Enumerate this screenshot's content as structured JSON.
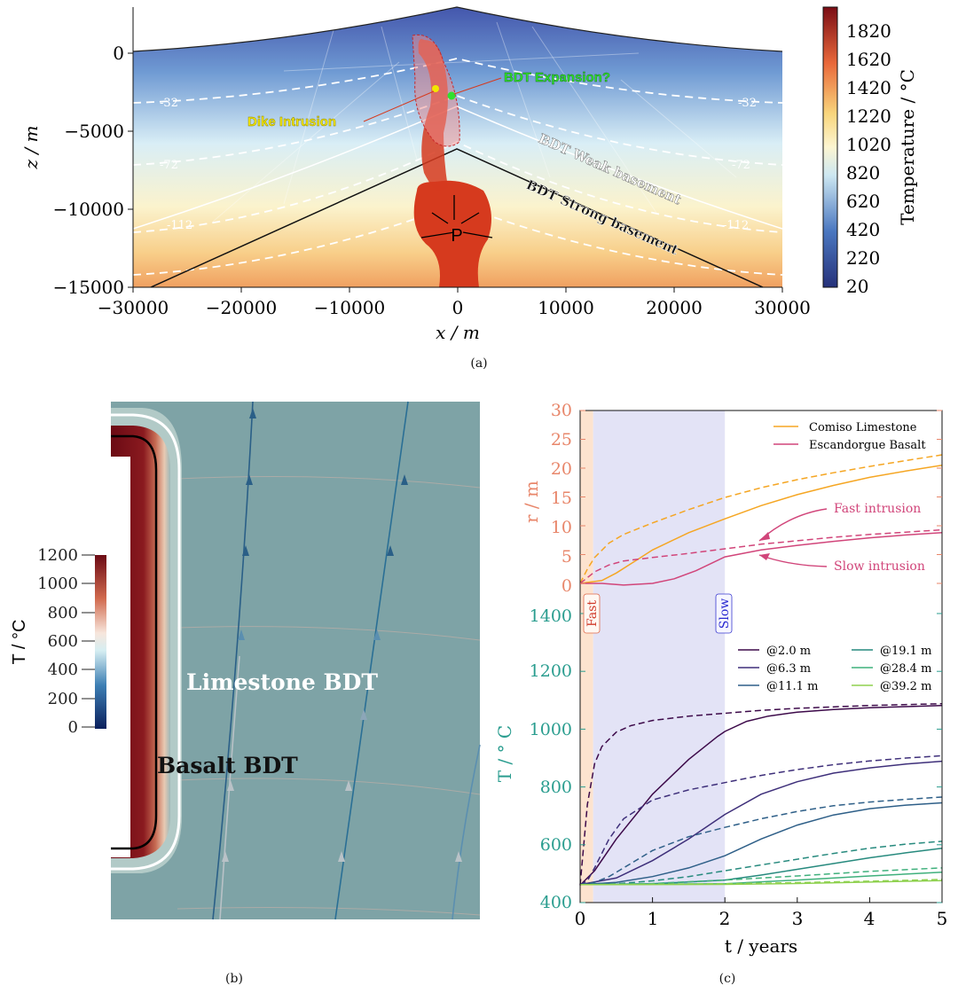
{
  "panel_a": {
    "caption": "(a)",
    "xlabel": "x / m",
    "ylabel": "z / m",
    "x_ticks": [
      "−30000",
      "−20000",
      "−10000",
      "0",
      "10000",
      "20000",
      "30000"
    ],
    "y_ticks": [
      "0",
      "−5000",
      "−10000",
      "−15000"
    ],
    "colorbar_label": "Temperature / °C",
    "colorbar_ticks": [
      "1820",
      "1620",
      "1420",
      "1220",
      "1020",
      "820",
      "620",
      "420",
      "220",
      "20"
    ],
    "isotherm_labels": [
      "-32",
      "-32",
      "-72",
      "-72",
      "-112",
      "-112"
    ],
    "annotations": {
      "dike": "Dike Intrusion",
      "bdt_expansion": "BDT Expansion?",
      "weak": "BDT Weak basement",
      "strong": "BDT Strong basement",
      "pressure": "P"
    },
    "colors": {
      "dike_label": "#f2e600",
      "expansion_label": "#2fe02f",
      "magma": "#d63a1e"
    }
  },
  "panel_b": {
    "caption": "(b)",
    "colorbar_label": "T / °C",
    "colorbar_ticks": [
      "1200",
      "1000",
      "800",
      "600",
      "400",
      "200",
      "0"
    ],
    "labels": {
      "limestone": "Limestone BDT",
      "basalt": "Basalt BDT"
    }
  },
  "panel_c": {
    "caption": "(c)",
    "xlabel": "t / years",
    "x_ticks": [
      "0",
      "1",
      "2",
      "3",
      "4",
      "5"
    ],
    "top_ylabel": "r / m",
    "top_y_ticks": [
      "30",
      "25",
      "20",
      "15",
      "10",
      "5",
      "0"
    ],
    "bottom_ylabel": "T / ° C",
    "bottom_y_ticks": [
      "1400",
      "1200",
      "1000",
      "800",
      "600",
      "400"
    ],
    "fast_label": "Fast",
    "slow_label": "Slow",
    "annotations": {
      "fast_intrusion": "Fast intrusion",
      "slow_intrusion": "Slow intrusion"
    },
    "top_legend": [
      "Comiso Limestone",
      "Escandorgue Basalt"
    ],
    "bottom_legend": [
      "@2.0 m",
      "@6.3 m",
      "@11.1 m",
      "@19.1 m",
      "@28.4 m",
      "@39.2 m"
    ],
    "colors": {
      "r_axis": "#e8866a",
      "T_axis": "#2a9d8f",
      "limestone": "#f5a623",
      "basalt": "#d1457a",
      "fast_band": "#fde3cf",
      "slow_band": "#e3e3f6"
    }
  },
  "chart_data": [
    {
      "type": "line",
      "xlabel": "t / years",
      "ylabel": "r / m",
      "xlim": [
        0,
        5
      ],
      "ylim": [
        0,
        30
      ],
      "series": [
        {
          "name": "Comiso Limestone",
          "style": "solid",
          "color": "#f5a623",
          "x": [
            0,
            0.3,
            0.5,
            0.8,
            1.0,
            1.5,
            2.0,
            2.5,
            3.0,
            3.5,
            4.0,
            4.5,
            5.0
          ],
          "y": [
            0,
            0.5,
            1.8,
            4.2,
            5.8,
            8.8,
            11.2,
            13.5,
            15.4,
            17.0,
            18.4,
            19.5,
            20.5
          ]
        },
        {
          "x": [
            0,
            0.1,
            0.2,
            0.4,
            0.6,
            1.0,
            1.5,
            2.0,
            2.5,
            3.0,
            3.5,
            4.0,
            4.5,
            5.0
          ],
          "y": [
            0,
            2.5,
            4.5,
            7.0,
            8.5,
            10.5,
            12.8,
            14.9,
            16.6,
            18.0,
            19.2,
            20.3,
            21.3,
            22.3
          ],
          "style": "dashed",
          "color": "#f5a623"
        },
        {
          "name": "Escandorgue Basalt",
          "style": "solid",
          "color": "#d1457a",
          "x": [
            0,
            0.3,
            0.6,
            1.0,
            1.3,
            1.6,
            2.0,
            2.5,
            3.0,
            3.5,
            4.0,
            4.5,
            5.0
          ],
          "y": [
            0,
            0,
            -0.3,
            0,
            0.8,
            2.2,
            4.6,
            5.8,
            6.6,
            7.3,
            7.9,
            8.4,
            8.8
          ]
        },
        {
          "x": [
            0,
            0.1,
            0.2,
            0.4,
            0.6,
            1.0,
            1.5,
            2.0,
            2.5,
            3.0,
            3.5,
            4.0,
            4.5,
            5.0
          ],
          "y": [
            0,
            1.0,
            2.0,
            3.2,
            3.9,
            4.5,
            5.2,
            6.0,
            6.8,
            7.4,
            8.0,
            8.5,
            8.9,
            9.3
          ],
          "style": "dashed",
          "color": "#d1457a"
        }
      ]
    },
    {
      "type": "line",
      "xlabel": "t / years",
      "ylabel": "T / ° C",
      "xlim": [
        0,
        5
      ],
      "ylim": [
        400,
        1450
      ],
      "series": [
        {
          "name": "@2.0 m",
          "style": "solid",
          "color": "#3d0a4a",
          "x": [
            0,
            0.2,
            0.5,
            1.0,
            1.5,
            1.9,
            2.0,
            2.3,
            2.6,
            3.0,
            3.5,
            4.0,
            4.5,
            5.0
          ],
          "y": [
            460,
            510,
            620,
            775,
            895,
            975,
            992,
            1027,
            1045,
            1059,
            1068,
            1074,
            1078,
            1082
          ]
        },
        {
          "x": [
            0,
            0.05,
            0.1,
            0.2,
            0.3,
            0.5,
            0.7,
            1.0,
            1.5,
            2.0,
            2.5,
            3.0,
            4.0,
            5.0
          ],
          "y": [
            460,
            600,
            740,
            880,
            940,
            990,
            1012,
            1030,
            1045,
            1055,
            1065,
            1072,
            1082,
            1088
          ],
          "style": "dashed",
          "color": "#3d0a4a"
        },
        {
          "name": "@6.3 m",
          "style": "solid",
          "color": "#3e2f7a",
          "x": [
            0,
            0.5,
            1.0,
            1.5,
            2.0,
            2.5,
            3.0,
            3.5,
            4.0,
            4.5,
            5.0
          ],
          "y": [
            462,
            485,
            545,
            620,
            705,
            775,
            818,
            848,
            866,
            879,
            889
          ]
        },
        {
          "x": [
            0,
            0.1,
            0.2,
            0.4,
            0.6,
            1.0,
            1.5,
            2.0,
            2.5,
            3.0,
            3.5,
            4.0,
            4.5,
            5.0
          ],
          "y": [
            462,
            475,
            520,
            620,
            690,
            755,
            790,
            815,
            840,
            860,
            877,
            890,
            900,
            908
          ],
          "style": "dashed",
          "color": "#3e2f7a"
        },
        {
          "name": "@11.1 m",
          "style": "solid",
          "color": "#2e5f88",
          "x": [
            0,
            0.5,
            1.0,
            1.5,
            2.0,
            2.5,
            3.0,
            3.5,
            4.0,
            4.5,
            5.0
          ],
          "y": [
            462,
            470,
            490,
            520,
            562,
            620,
            668,
            703,
            725,
            737,
            745
          ]
        },
        {
          "x": [
            0,
            0.2,
            0.4,
            0.6,
            1.0,
            1.5,
            2.0,
            2.5,
            3.0,
            3.5,
            4.0,
            4.5,
            5.0
          ],
          "y": [
            462,
            470,
            490,
            520,
            580,
            628,
            660,
            690,
            715,
            735,
            748,
            757,
            765
          ],
          "style": "dashed",
          "color": "#2e5f88"
        },
        {
          "name": "@19.1 m",
          "style": "solid",
          "color": "#278a7e",
          "x": [
            0,
            1.0,
            2.0,
            2.5,
            3.0,
            3.5,
            4.0,
            4.5,
            5.0
          ],
          "y": [
            462,
            465,
            478,
            495,
            515,
            535,
            555,
            572,
            588
          ]
        },
        {
          "x": [
            0,
            0.5,
            1.0,
            1.5,
            2.0,
            2.5,
            3.0,
            3.5,
            4.0,
            4.5,
            5.0
          ],
          "y": [
            462,
            465,
            475,
            490,
            510,
            530,
            550,
            570,
            588,
            602,
            612
          ],
          "style": "dashed",
          "color": "#278a7e"
        },
        {
          "name": "@28.4 m",
          "style": "solid",
          "color": "#3fb07c",
          "x": [
            0,
            2.0,
            3.0,
            4.0,
            5.0
          ],
          "y": [
            462,
            465,
            478,
            492,
            505
          ]
        },
        {
          "x": [
            0,
            1.0,
            2.0,
            3.0,
            4.0,
            5.0
          ],
          "y": [
            462,
            466,
            478,
            492,
            508,
            520
          ],
          "style": "dashed",
          "color": "#3fb07c"
        },
        {
          "name": "@39.2 m",
          "style": "solid",
          "color": "#8fd14f",
          "x": [
            0,
            2.0,
            3.0,
            4.0,
            5.0
          ],
          "y": [
            462,
            463,
            466,
            471,
            476
          ]
        },
        {
          "x": [
            0,
            2.0,
            3.0,
            4.0,
            5.0
          ],
          "y": [
            462,
            465,
            469,
            474,
            480
          ],
          "style": "dashed",
          "color": "#8fd14f"
        }
      ]
    }
  ]
}
